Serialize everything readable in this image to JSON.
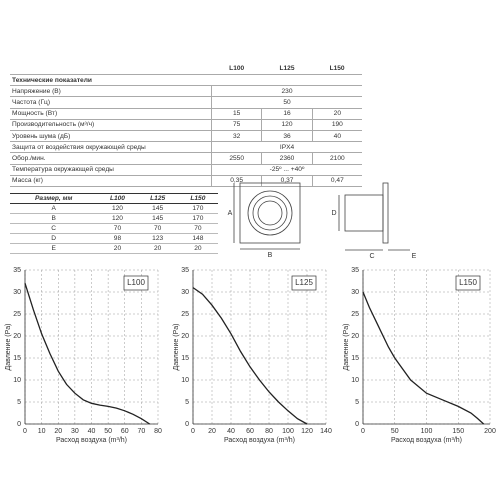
{
  "specs": {
    "header": [
      "L100",
      "L125",
      "L150"
    ],
    "section": "Технические показатели",
    "rows": [
      {
        "label": "Напряжение (В)",
        "values": [
          230
        ]
      },
      {
        "label": "Частота (Гц)",
        "values": [
          50
        ]
      },
      {
        "label": "Мощность (Вт)",
        "values": [
          15,
          16,
          20
        ]
      },
      {
        "label": "Производительность (м³/ч)",
        "values": [
          75,
          120,
          190
        ]
      },
      {
        "label": "Уровень шума (дБ)",
        "values": [
          32,
          36,
          40
        ]
      },
      {
        "label": "Защита от воздействия  окружающей среды",
        "values": [
          "IPX4"
        ]
      },
      {
        "label": "Обор./мин.",
        "values": [
          2550,
          2360,
          2100
        ]
      },
      {
        "label": "Температура окружающей среды",
        "values": [
          "-25º ... +40º"
        ]
      },
      {
        "label": "Масса (кг)",
        "values": [
          "0,35",
          "0,37",
          "0,47"
        ]
      }
    ]
  },
  "sizes": {
    "header": [
      "Размер, мм",
      "L100",
      "L125",
      "L150"
    ],
    "rows": [
      [
        "A",
        120,
        145,
        170
      ],
      [
        "B",
        120,
        145,
        170
      ],
      [
        "C",
        70,
        70,
        70
      ],
      [
        "D",
        98,
        123,
        148
      ],
      [
        "E",
        20,
        20,
        20
      ]
    ]
  },
  "drawing": {
    "front": [
      "A",
      "B"
    ],
    "side": [
      "D",
      "C",
      "E"
    ]
  },
  "chart_data": [
    {
      "type": "line",
      "label": "L100",
      "x_label": "Расход воздуха (m³/h)",
      "y_label": "Давление (Pa)",
      "x": [
        0,
        5,
        10,
        15,
        20,
        25,
        30,
        35,
        40,
        45,
        50,
        55,
        60,
        65,
        70,
        75
      ],
      "values": [
        32,
        26,
        20.5,
        16,
        12,
        9,
        7,
        5.5,
        4.7,
        4.3,
        4,
        3.6,
        3,
        2.2,
        1.2,
        0
      ],
      "color": "#222",
      "xlim": [
        0,
        80
      ],
      "xticks": [
        0,
        10,
        20,
        30,
        40,
        50,
        60,
        70,
        80
      ],
      "ylim": [
        0,
        35
      ],
      "yticks": [
        0,
        5,
        10,
        15,
        20,
        25,
        30,
        35
      ],
      "grid": true
    },
    {
      "type": "line",
      "label": "L125",
      "x_label": "Расход воздуха (m³/h)",
      "y_label": "Давление (Pa)",
      "x": [
        0,
        10,
        20,
        30,
        40,
        50,
        60,
        70,
        80,
        90,
        100,
        110,
        120
      ],
      "values": [
        31,
        29.5,
        27,
        24,
        20.5,
        16.5,
        13,
        10,
        7.3,
        5,
        3,
        1.2,
        0
      ],
      "color": "#222",
      "xlim": [
        0,
        140
      ],
      "xticks": [
        0,
        20,
        40,
        60,
        80,
        100,
        120,
        140
      ],
      "ylim": [
        0,
        35
      ],
      "yticks": [
        0,
        5,
        10,
        15,
        20,
        25,
        30,
        35
      ],
      "grid": true
    },
    {
      "type": "line",
      "label": "L150",
      "x_label": "Расход воздуха (m³/h)",
      "y_label": "Давление (Pa)",
      "x": [
        0,
        10,
        25,
        40,
        50,
        75,
        100,
        125,
        150,
        170,
        180,
        190
      ],
      "values": [
        30,
        26.5,
        22,
        17.5,
        15,
        10,
        7,
        5.5,
        4,
        2.5,
        1.3,
        0
      ],
      "color": "#222",
      "xlim": [
        0,
        200
      ],
      "xticks": [
        0,
        50,
        100,
        150,
        200
      ],
      "ylim": [
        0,
        35
      ],
      "yticks": [
        0,
        5,
        10,
        15,
        20,
        25,
        30,
        35
      ],
      "grid": true
    }
  ]
}
